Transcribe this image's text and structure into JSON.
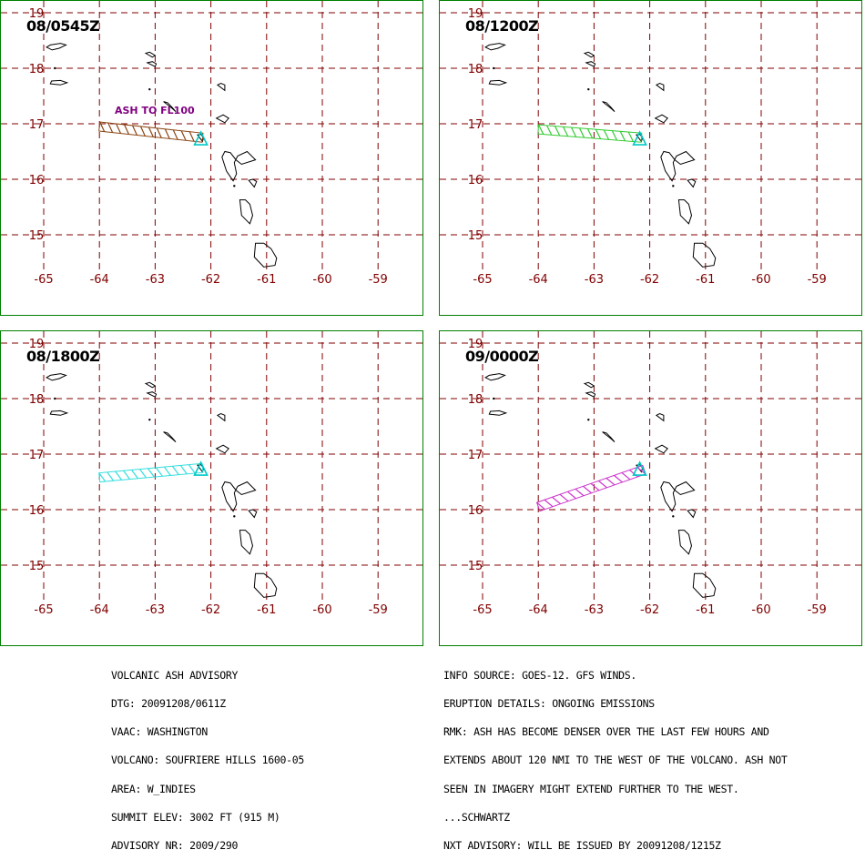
{
  "colors": {
    "border": "#008000",
    "grid": "#800000",
    "coast": "#000000",
    "volcano": "#00c8c8"
  },
  "panels": [
    {
      "time": "08/0545Z",
      "label": "ASH TO FL100",
      "ash_color": "#8b4513",
      "ash_start": [
        -64.0,
        16.95
      ],
      "ash_end": [
        -62.15,
        16.75
      ]
    },
    {
      "time": "08/1200Z",
      "label": "",
      "ash_color": "#33cc33",
      "ash_start": [
        -64.0,
        16.9
      ],
      "ash_end": [
        -62.15,
        16.75
      ]
    },
    {
      "time": "08/1800Z",
      "label": "",
      "ash_color": "#33dddd",
      "ash_start": [
        -64.0,
        16.58
      ],
      "ash_end": [
        -62.15,
        16.75
      ]
    },
    {
      "time": "09/0000Z",
      "label": "",
      "ash_color": "#cc33cc",
      "ash_start": [
        -64.0,
        16.05
      ],
      "ash_end": [
        -62.1,
        16.72
      ]
    }
  ],
  "axes": {
    "lon_ticks": [
      "-65",
      "-64",
      "-63",
      "-62",
      "-61",
      "-60",
      "-59"
    ],
    "lat_ticks": [
      "19",
      "18",
      "17",
      "16",
      "15"
    ],
    "lon_values": [
      -65,
      -64,
      -63,
      -62,
      -61,
      -60,
      -59
    ],
    "lat_values": [
      19,
      18,
      17,
      16,
      15
    ]
  },
  "volcano": {
    "lon": -62.18,
    "lat": 16.72
  },
  "advisory_left": [
    "VOLCANIC ASH ADVISORY",
    "DTG: 20091208/0611Z",
    "VAAC: WASHINGTON",
    "VOLCANO: SOUFRIERE HILLS 1600-05",
    "AREA: W_INDIES",
    "SUMMIT ELEV: 3002 FT (915 M)",
    "ADVISORY NR: 2009/290"
  ],
  "advisory_right": [
    "INFO SOURCE: GOES-12. GFS WINDS.",
    "ERUPTION DETAILS: ONGOING EMISSIONS",
    "RMK: ASH HAS BECOME DENSER OVER THE LAST FEW HOURS AND",
    "EXTENDS ABOUT 120 NMI TO THE WEST OF THE VOLCANO. ASH NOT",
    "SEEN IN IMAGERY MIGHT EXTEND FURTHER TO THE WEST.",
    "...SCHWARTZ",
    "NXT ADVISORY: WILL BE ISSUED BY 20091208/1215Z"
  ]
}
